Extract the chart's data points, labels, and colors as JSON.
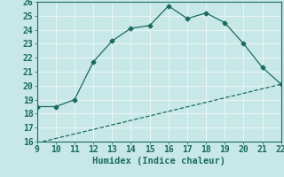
{
  "title": "",
  "xlabel": "Humidex (Indice chaleur)",
  "xlim": [
    9,
    22
  ],
  "ylim": [
    16,
    26
  ],
  "xticks": [
    9,
    10,
    11,
    12,
    13,
    14,
    15,
    16,
    17,
    18,
    19,
    20,
    21,
    22
  ],
  "yticks": [
    16,
    17,
    18,
    19,
    20,
    21,
    22,
    23,
    24,
    25,
    26
  ],
  "line1_x": [
    9,
    10,
    11,
    12,
    13,
    14,
    15,
    16,
    17,
    18,
    19,
    20,
    21,
    22
  ],
  "line1_y": [
    18.5,
    18.5,
    19.0,
    21.7,
    23.2,
    24.1,
    24.3,
    25.7,
    24.8,
    25.2,
    24.5,
    23.0,
    21.3,
    20.1
  ],
  "line2_x": [
    9,
    22
  ],
  "line2_y": [
    15.9,
    20.1
  ],
  "line_color": "#1a6b5a",
  "marker": "D",
  "marker_size": 2.5,
  "bg_color": "#c8e8e8",
  "grid_color": "#e8f4f4",
  "font_color": "#1a6b5a",
  "tick_fontsize": 7,
  "label_fontsize": 7.5
}
